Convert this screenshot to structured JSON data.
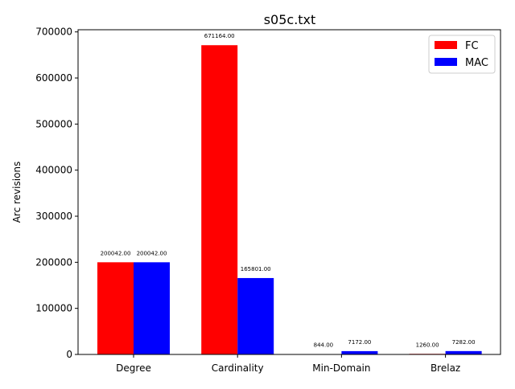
{
  "chart_data": {
    "type": "bar",
    "title": "s05c.txt",
    "xlabel": "",
    "ylabel": "Arc revisions",
    "categories": [
      "Degree",
      "Cardinality",
      "Min-Domain",
      "Brelaz"
    ],
    "series": [
      {
        "name": "FC",
        "color": "#ff0000",
        "values": [
          200042,
          671164,
          844,
          1260
        ],
        "labels": [
          "200042.00",
          "671164.00",
          "844.00",
          "1260.00"
        ]
      },
      {
        "name": "MAC",
        "color": "#0000ff",
        "values": [
          200042,
          165801,
          7172,
          7282
        ],
        "labels": [
          "200042.00",
          "165801.00",
          "7172.00",
          "7282.00"
        ]
      }
    ],
    "ylim": [
      0,
      704722
    ],
    "yticks": [
      0,
      100000,
      200000,
      300000,
      400000,
      500000,
      600000,
      700000
    ],
    "ytick_labels": [
      "0",
      "100000",
      "200000",
      "300000",
      "400000",
      "500000",
      "600000",
      "700000"
    ],
    "grid": false,
    "legend": "top-right"
  }
}
